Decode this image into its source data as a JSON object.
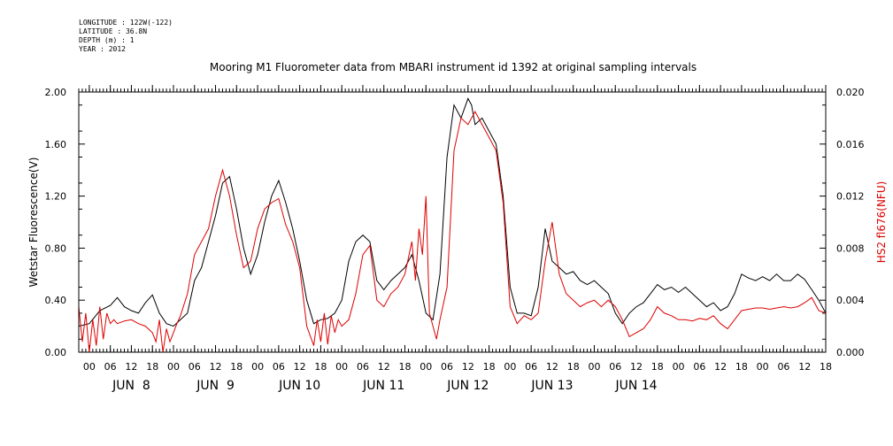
{
  "header": {
    "lines": [
      "LONGITUDE : 122W(-122)",
      "LATITUDE : 36.8N",
      "DEPTH (m) : 1",
      "YEAR : 2012"
    ]
  },
  "chart_data": {
    "type": "line",
    "title": "Mooring M1 Fluorometer data from MBARI instrument id 1392 at original sampling intervals",
    "xlabel": "",
    "ylabel": "Wetstar Fluorescence(V)",
    "y2label": "HS2 fl676(NFU)",
    "xlim": [
      -3,
      210
    ],
    "ylim": [
      0,
      2.0
    ],
    "y2lim": [
      0,
      0.02
    ],
    "yticks": [
      "0.00",
      "0.40",
      "0.80",
      "1.20",
      "1.60",
      "2.00"
    ],
    "y2ticks": [
      "0.000",
      "0.004",
      "0.008",
      "0.012",
      "0.016",
      "0.020"
    ],
    "hour_ticks": [
      "00",
      "06",
      "12",
      "18"
    ],
    "day_labels": [
      "JUN  8",
      "JUN  9",
      "JUN 10",
      "JUN 11",
      "JUN 12",
      "JUN 13",
      "JUN 14"
    ],
    "series": [
      {
        "axis": "left",
        "color": "#000000",
        "x": [
          -3,
          0,
          3,
          6,
          8,
          10,
          12,
          14,
          16,
          18,
          20,
          22,
          24,
          26,
          28,
          30,
          31,
          32,
          34,
          36,
          38,
          40,
          42,
          44,
          46,
          48,
          50,
          52,
          54,
          56,
          58,
          60,
          62,
          64,
          66,
          68,
          70,
          72,
          74,
          76,
          78,
          80,
          82,
          84,
          86,
          88,
          90,
          92,
          94,
          96,
          98,
          100,
          102,
          104,
          106,
          108,
          109,
          110,
          112,
          114,
          116,
          118,
          120,
          122,
          124,
          126,
          128,
          130,
          132,
          134,
          136,
          138,
          140,
          142,
          144,
          146,
          148,
          150,
          152,
          154,
          156,
          158,
          160,
          162,
          164,
          166,
          168,
          170,
          172,
          174,
          176,
          178,
          180,
          182,
          184,
          186,
          188,
          190,
          192,
          194,
          196,
          198,
          200,
          202,
          204,
          206,
          208,
          210
        ],
        "y": [
          0.2,
          0.22,
          0.32,
          0.36,
          0.42,
          0.35,
          0.32,
          0.3,
          0.38,
          0.44,
          0.3,
          0.22,
          0.2,
          0.25,
          0.3,
          0.55,
          0.6,
          0.65,
          0.85,
          1.05,
          1.3,
          1.35,
          1.1,
          0.8,
          0.6,
          0.75,
          1.0,
          1.2,
          1.32,
          1.15,
          0.95,
          0.7,
          0.4,
          0.22,
          0.25,
          0.26,
          0.3,
          0.4,
          0.7,
          0.85,
          0.9,
          0.85,
          0.55,
          0.48,
          0.55,
          0.6,
          0.65,
          0.75,
          0.55,
          0.3,
          0.25,
          0.6,
          1.5,
          1.9,
          1.8,
          1.95,
          1.9,
          1.75,
          1.8,
          1.7,
          1.6,
          1.2,
          0.5,
          0.3,
          0.3,
          0.28,
          0.5,
          0.95,
          0.7,
          0.65,
          0.6,
          0.62,
          0.55,
          0.52,
          0.55,
          0.5,
          0.45,
          0.3,
          0.22,
          0.3,
          0.35,
          0.38,
          0.45,
          0.52,
          0.48,
          0.5,
          0.46,
          0.5,
          0.45,
          0.4,
          0.35,
          0.38,
          0.32,
          0.35,
          0.45,
          0.6,
          0.57,
          0.55,
          0.58,
          0.55,
          0.6,
          0.55,
          0.55,
          0.6,
          0.56,
          0.48,
          0.4,
          0.3
        ]
      },
      {
        "axis": "right",
        "color": "#dd0000",
        "x": [
          -3,
          -2,
          -1,
          0,
          1,
          2,
          3,
          4,
          5,
          6,
          7,
          8,
          10,
          12,
          14,
          16,
          18,
          19,
          20,
          21,
          22,
          23,
          24,
          25,
          26,
          28,
          30,
          32,
          34,
          36,
          38,
          40,
          42,
          44,
          46,
          48,
          50,
          52,
          54,
          56,
          58,
          60,
          62,
          64,
          65,
          66,
          67,
          68,
          69,
          70,
          71,
          72,
          74,
          76,
          78,
          80,
          82,
          84,
          86,
          88,
          90,
          92,
          93,
          94,
          95,
          96,
          97,
          98,
          99,
          100,
          102,
          104,
          106,
          108,
          110,
          112,
          114,
          116,
          118,
          120,
          122,
          124,
          126,
          128,
          130,
          132,
          134,
          136,
          138,
          140,
          142,
          144,
          146,
          148,
          150,
          152,
          154,
          156,
          158,
          160,
          162,
          164,
          166,
          168,
          170,
          172,
          174,
          176,
          178,
          180,
          182,
          184,
          186,
          188,
          190,
          192,
          194,
          196,
          198,
          200,
          202,
          204,
          206,
          208,
          210
        ],
        "y": [
          0.0035,
          0.0008,
          0.003,
          0.0,
          0.0025,
          0.0005,
          0.0035,
          0.001,
          0.003,
          0.0022,
          0.0025,
          0.0022,
          0.0024,
          0.0025,
          0.0022,
          0.002,
          0.0015,
          0.0008,
          0.0025,
          0.0,
          0.0018,
          0.0008,
          0.0015,
          0.0022,
          0.0028,
          0.0045,
          0.0075,
          0.0085,
          0.0095,
          0.012,
          0.014,
          0.012,
          0.009,
          0.0065,
          0.007,
          0.0095,
          0.011,
          0.0115,
          0.0118,
          0.0098,
          0.0085,
          0.0065,
          0.002,
          0.0005,
          0.0025,
          0.0008,
          0.003,
          0.0006,
          0.0028,
          0.0015,
          0.0025,
          0.002,
          0.0025,
          0.0045,
          0.0075,
          0.0082,
          0.004,
          0.0035,
          0.0045,
          0.005,
          0.006,
          0.0085,
          0.0055,
          0.0095,
          0.0075,
          0.012,
          0.003,
          0.002,
          0.001,
          0.0025,
          0.005,
          0.0155,
          0.018,
          0.0175,
          0.0185,
          0.0175,
          0.0165,
          0.0155,
          0.0115,
          0.0035,
          0.0022,
          0.0028,
          0.0025,
          0.003,
          0.007,
          0.01,
          0.006,
          0.0045,
          0.004,
          0.0035,
          0.0038,
          0.004,
          0.0035,
          0.004,
          0.0035,
          0.0025,
          0.0012,
          0.0015,
          0.0018,
          0.0025,
          0.0035,
          0.003,
          0.0028,
          0.0025,
          0.0025,
          0.0024,
          0.0026,
          0.0025,
          0.0028,
          0.0022,
          0.0018,
          0.0025,
          0.0032,
          0.0033,
          0.0034,
          0.0034,
          0.0033,
          0.0034,
          0.0035,
          0.0034,
          0.0035,
          0.0038,
          0.0042,
          0.0032,
          0.003
        ]
      }
    ],
    "grid": false
  }
}
